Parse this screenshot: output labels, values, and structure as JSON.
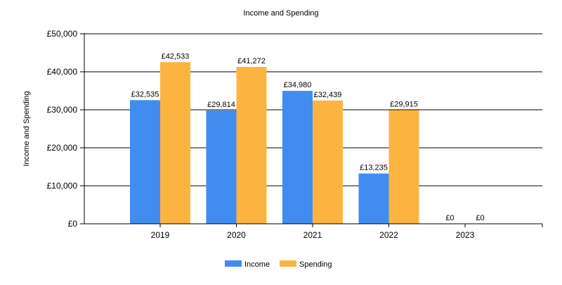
{
  "chart_data": {
    "type": "bar",
    "title": "Income and Spending",
    "xlabel": "",
    "ylabel": "Income and Spending",
    "categories": [
      "2019",
      "2020",
      "2021",
      "2022",
      "2023"
    ],
    "series": [
      {
        "name": "Income",
        "color": "#418CF0",
        "values": [
          32535,
          29814,
          34980,
          13235,
          0
        ],
        "labels": [
          "£32,535",
          "£29,814",
          "£34,980",
          "£13,235",
          "£0"
        ]
      },
      {
        "name": "Spending",
        "color": "#FCB441",
        "values": [
          42533,
          41272,
          32439,
          29915,
          0
        ],
        "labels": [
          "£42,533",
          "£41,272",
          "£32,439",
          "£29,915",
          "£0"
        ]
      }
    ],
    "ylim": [
      0,
      50000
    ],
    "yticks": [
      0,
      10000,
      20000,
      30000,
      40000,
      50000
    ],
    "ytick_labels": [
      "£0",
      "£10,000",
      "£20,000",
      "£30,000",
      "£40,000",
      "£50,000"
    ],
    "grid": true,
    "legend_position": "bottom"
  }
}
